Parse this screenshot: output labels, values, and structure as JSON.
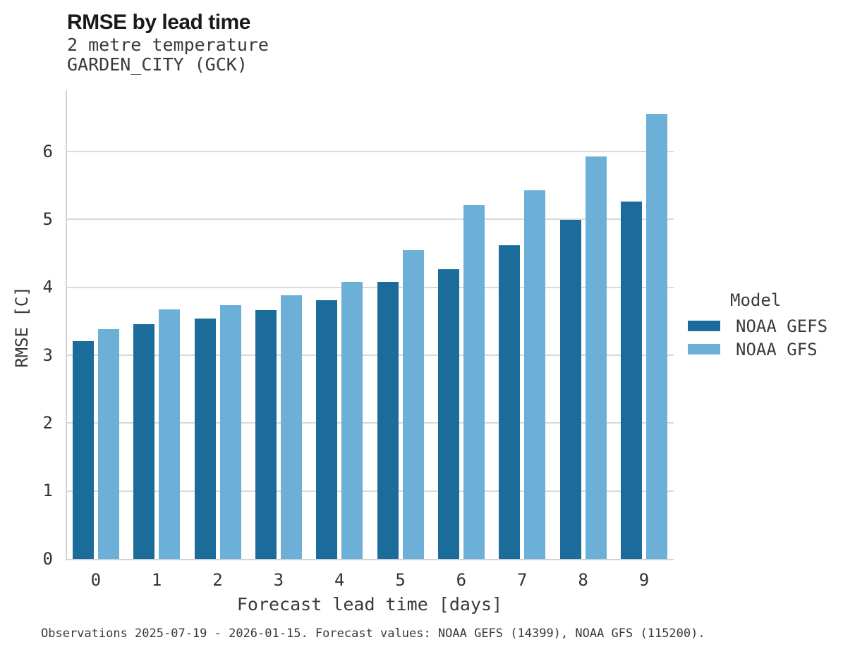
{
  "title": "RMSE by lead time",
  "subtitle_line1": "2 metre temperature",
  "subtitle_line2": "GARDEN_CITY (GCK)",
  "footnote": "Observations 2025-07-19 - 2026-01-15. Forecast values: NOAA GEFS (14399), NOAA GFS (115200).",
  "legend": {
    "title": "Model",
    "items": [
      {
        "label": "NOAA GEFS",
        "color": "#1B6C9B"
      },
      {
        "label": "NOAA GFS",
        "color": "#6CB0D8"
      }
    ]
  },
  "chart_data": {
    "type": "bar",
    "title": "RMSE by lead time",
    "subtitle": [
      "2 metre temperature",
      "GARDEN_CITY (GCK)"
    ],
    "categories": [
      0,
      1,
      2,
      3,
      4,
      5,
      6,
      7,
      8,
      9
    ],
    "series": [
      {
        "name": "NOAA GEFS",
        "color": "#1B6C9B",
        "values": [
          3.21,
          3.46,
          3.54,
          3.66,
          3.81,
          4.08,
          4.27,
          4.62,
          4.99,
          5.26
        ]
      },
      {
        "name": "NOAA GFS",
        "color": "#6CB0D8",
        "values": [
          3.38,
          3.67,
          3.74,
          3.88,
          4.08,
          4.55,
          5.21,
          5.43,
          5.93,
          6.55
        ]
      }
    ],
    "xlabel": "Forecast lead time [days]",
    "ylabel": "RMSE [C]",
    "ylim": [
      0,
      6.9
    ],
    "yticks": [
      0,
      1,
      2,
      3,
      4,
      5,
      6
    ],
    "grid": "horizontal",
    "legend_position": "right",
    "legend_title": "Model"
  },
  "colors": {
    "grid": "#d9d9d9",
    "spine": "#d3d3d3",
    "title_text": "#1a1a1a",
    "text": "#3a3a3a"
  }
}
